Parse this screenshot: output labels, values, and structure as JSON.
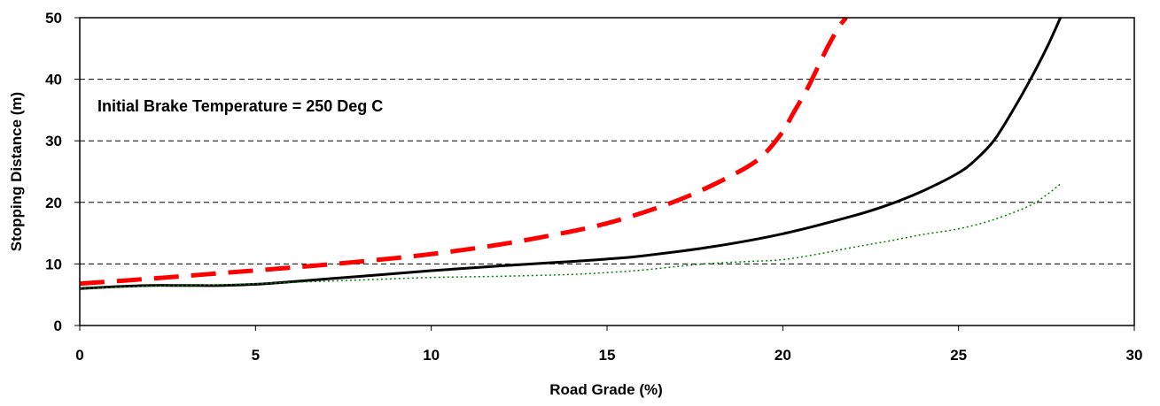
{
  "chart_data": {
    "type": "line",
    "title": "",
    "xlabel": "Road Grade (%)",
    "ylabel": "Stopping Distance (m)",
    "xlim": [
      0,
      30
    ],
    "ylim": [
      0,
      50
    ],
    "xticks": [
      0,
      5,
      10,
      15,
      20,
      25,
      30
    ],
    "yticks": [
      0,
      10,
      20,
      30,
      40,
      50
    ],
    "xtick_labels": [
      "0",
      "5",
      "10",
      "15",
      "20",
      "25",
      "30"
    ],
    "ytick_labels": [
      "0",
      "10",
      "20",
      "30",
      "40",
      "50"
    ],
    "grid": "horizontal dashed",
    "legend": "none",
    "annotation": "Initial Brake Temperature = 250 Deg C",
    "series": [
      {
        "style": "dashed",
        "color": "#ff0000",
        "x": [
          0,
          2,
          4,
          6,
          8,
          10,
          12,
          14,
          15,
          16,
          17,
          18,
          19,
          19.5,
          20,
          20.3,
          20.7,
          21,
          21.3,
          21.6,
          21.8
        ],
        "y": [
          6.8,
          7.6,
          8.5,
          9.4,
          10.4,
          11.6,
          13.2,
          15.3,
          16.6,
          18.3,
          20.3,
          22.8,
          25.8,
          28.0,
          31.5,
          34.5,
          38.5,
          42.0,
          45.5,
          48.5,
          50
        ]
      },
      {
        "style": "solid",
        "color": "#000000",
        "x": [
          0,
          1,
          2,
          3,
          4,
          5,
          6,
          8,
          10,
          12,
          14,
          15,
          16,
          18,
          20,
          22,
          23,
          24,
          25,
          25.5,
          26,
          26.5,
          27,
          27.5,
          27.9
        ],
        "y": [
          6.0,
          6.3,
          6.5,
          6.5,
          6.5,
          6.7,
          7.1,
          8.0,
          8.9,
          9.7,
          10.4,
          10.8,
          11.3,
          12.8,
          14.9,
          17.8,
          19.6,
          21.9,
          24.8,
          27.0,
          30.0,
          34.5,
          39.5,
          45.0,
          50
        ]
      },
      {
        "style": "dotted",
        "color": "#008000",
        "x": [
          0,
          2,
          4,
          6,
          8,
          10,
          12,
          14,
          15,
          16,
          17,
          18,
          19,
          20,
          21,
          22,
          23,
          24,
          25,
          26,
          27,
          27.5,
          27.9
        ],
        "y": [
          6.0,
          6.4,
          6.6,
          7.0,
          7.4,
          7.8,
          8.0,
          8.3,
          8.6,
          9.0,
          9.6,
          10.1,
          10.4,
          10.7,
          11.6,
          12.7,
          13.7,
          14.8,
          15.7,
          17.2,
          19.4,
          21.2,
          23.0
        ]
      }
    ]
  }
}
